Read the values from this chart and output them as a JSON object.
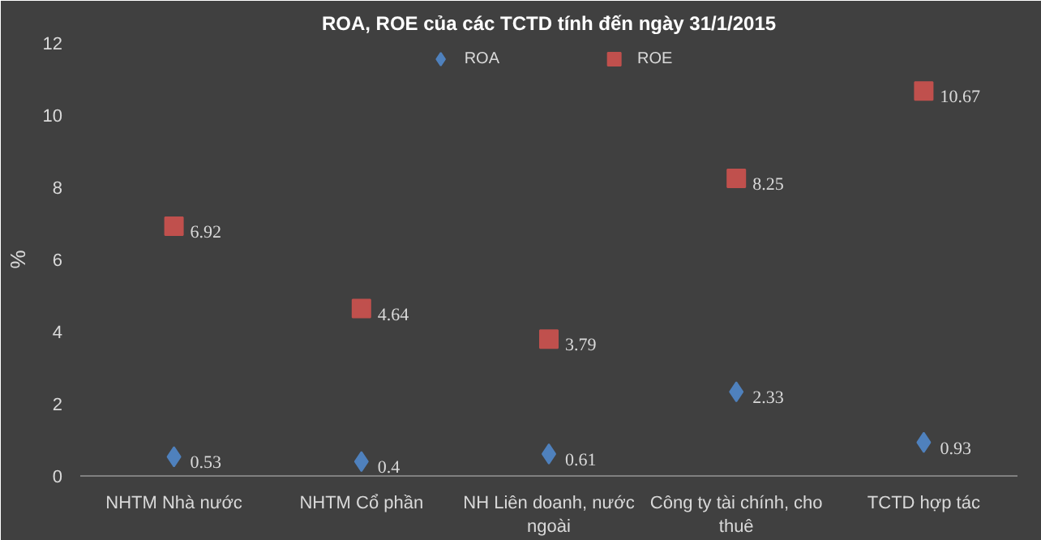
{
  "chart_data": {
    "type": "scatter",
    "title": "ROA, ROE của các TCTD tính đến ngày 31/1/2015",
    "ylabel": "%",
    "categories": [
      "NHTM Nhà nước",
      "NHTM Cổ phần",
      "NH Liên doanh, nước ngoài",
      "Công ty tài chính, cho thuê",
      "TCTD hợp tác"
    ],
    "series": [
      {
        "name": "ROA",
        "color": "#4f81bd",
        "marker": "diamond",
        "values": [
          0.53,
          0.4,
          0.61,
          2.33,
          0.93
        ]
      },
      {
        "name": "ROE",
        "color": "#c0504d",
        "marker": "square",
        "values": [
          6.92,
          4.64,
          3.79,
          8.25,
          10.67
        ]
      }
    ],
    "ylim": [
      0,
      12
    ],
    "yticks": [
      0,
      2,
      4,
      6,
      8,
      10,
      12
    ],
    "data_labels": true,
    "legend": "top",
    "grid": false
  }
}
